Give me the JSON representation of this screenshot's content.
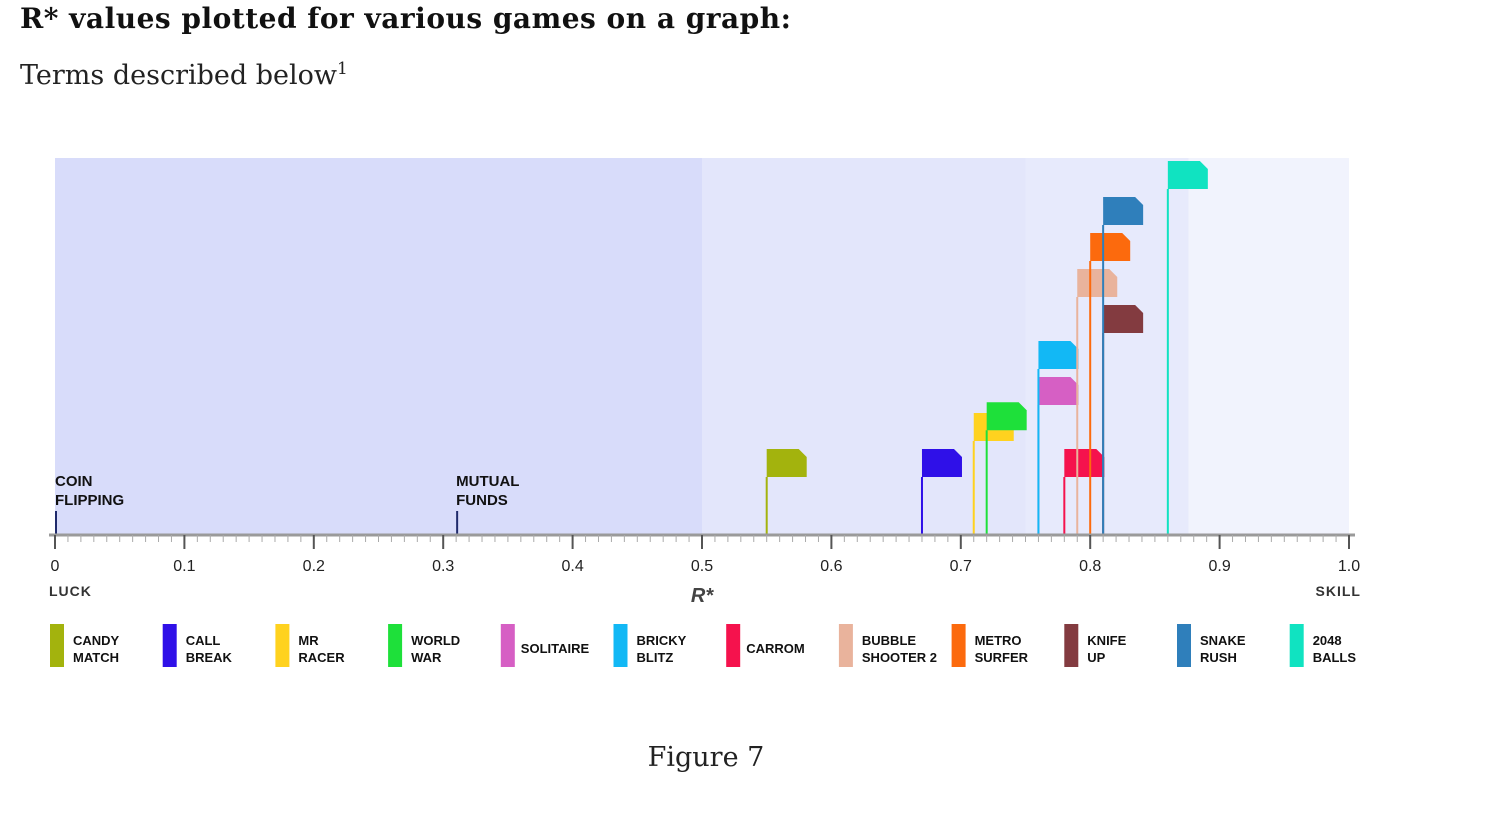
{
  "heading": "R* values plotted for various games on a graph:",
  "subheading": {
    "text": "Terms described below",
    "footnote": "1"
  },
  "caption": "Figure 7",
  "chart_data": {
    "type": "scatter",
    "xlabel": "R*",
    "xlim": [
      0,
      1.0
    ],
    "ticks": [
      "0",
      "0.1",
      "0.2",
      "0.3",
      "0.4",
      "0.5",
      "0.6",
      "0.7",
      "0.8",
      "0.9",
      "1.0"
    ],
    "left_label": "LUCK",
    "right_label": "SKILL",
    "regions": [
      {
        "from": 0,
        "to": 0.5,
        "color": "#d8dcfa"
      },
      {
        "from": 0.5,
        "to": 0.75,
        "color": "#e3e6fb"
      },
      {
        "from": 0.75,
        "to": 0.876,
        "color": "#e7eafc"
      },
      {
        "from": 0.876,
        "to": 1.0,
        "color": "#f1f3fd"
      }
    ],
    "annotations": [
      {
        "lines": [
          "COIN",
          "FLIPPING"
        ],
        "x": 0.0
      },
      {
        "lines": [
          "MUTUAL",
          "FUNDS"
        ],
        "x": 0.31
      }
    ],
    "games": [
      {
        "name": [
          "CANDY",
          "MATCH"
        ],
        "x": 0.55,
        "level": 1,
        "color": "#a3b30d"
      },
      {
        "name": [
          "CALL",
          "BREAK"
        ],
        "x": 0.67,
        "level": 1,
        "color": "#2f10e8"
      },
      {
        "name": [
          "MR",
          "RACER"
        ],
        "x": 0.71,
        "level": 2,
        "color": "#ffd21f"
      },
      {
        "name": [
          "WORLD",
          "WAR"
        ],
        "x": 0.72,
        "level": 2.3,
        "color": "#1ee03a"
      },
      {
        "name": [
          "SOLITAIRE"
        ],
        "x": 0.76,
        "level": 3,
        "color": "#d65fc4"
      },
      {
        "name": [
          "BRICKY",
          "BLITZ"
        ],
        "x": 0.76,
        "level": 4,
        "color": "#12b8f5"
      },
      {
        "name": [
          "CARROM"
        ],
        "x": 0.78,
        "level": 1,
        "color": "#f5124d"
      },
      {
        "name": [
          "BUBBLE",
          "SHOOTER 2"
        ],
        "x": 0.79,
        "level": 6,
        "color": "#e9b39c"
      },
      {
        "name": [
          "METRO",
          "SURFER"
        ],
        "x": 0.8,
        "level": 7,
        "color": "#fc6a0d"
      },
      {
        "name": [
          "KNIFE",
          "UP"
        ],
        "x": 0.81,
        "level": 5,
        "color": "#833b40"
      },
      {
        "name": [
          "SNAKE",
          "RUSH"
        ],
        "x": 0.81,
        "level": 8,
        "color": "#2f7fbb"
      },
      {
        "name": [
          "2048",
          "BALLS"
        ],
        "x": 0.86,
        "level": 9,
        "color": "#10e3c1"
      }
    ]
  }
}
